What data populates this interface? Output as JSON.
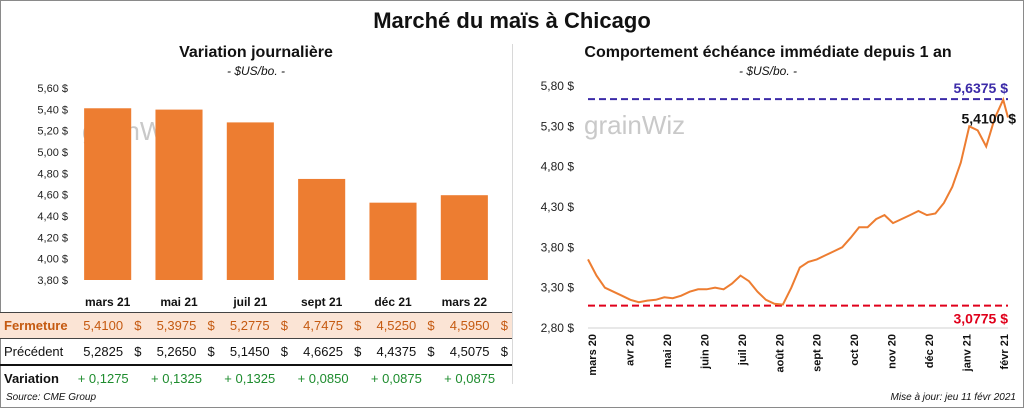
{
  "title": "Marché du maïs à Chicago",
  "left": {
    "title": "Variation  journalière",
    "unit": "- $US/bo. -",
    "watermark": "grainWiz"
  },
  "right": {
    "title": "Comportement  échéance immédiate depuis 1 an",
    "unit": "- $US/bo. -",
    "watermark": "grainWiz",
    "max_label": "5,6375 $",
    "last_label": "5,4100 $",
    "min_label": "3,0775 $"
  },
  "table": {
    "close_label": "Fermeture",
    "prev_label": "Précédent",
    "var_label": "Variation",
    "currency": "$",
    "close": [
      "5,4100",
      "5,3975",
      "5,2775",
      "4,7475",
      "4,5250",
      "4,5950"
    ],
    "prev": [
      "5,2825",
      "5,2650",
      "5,1450",
      "4,6625",
      "4,4375",
      "4,5075"
    ],
    "var": [
      "+ 0,1275",
      "+ 0,1325",
      "+ 0,1325",
      "+ 0,0850",
      "+ 0,0875",
      "+ 0,0875"
    ]
  },
  "source": "Source: CME Group",
  "updated": "Mise à jour: jeu 11 févr 2021",
  "colors": {
    "bar": "#ed7d31",
    "line": "#ed7d31",
    "max_line": "#3b2aa8",
    "min_line": "#e0001b",
    "gain": "#1e8c2e"
  },
  "chart_data": [
    {
      "type": "bar",
      "categories": [
        "mars 21",
        "mai 21",
        "juil 21",
        "sept 21",
        "déc 21",
        "mars 22"
      ],
      "values": [
        5.41,
        5.3975,
        5.2775,
        4.7475,
        4.525,
        4.595
      ],
      "ylim": [
        3.8,
        5.6
      ],
      "yticks": [
        3.8,
        4.0,
        4.2,
        4.4,
        4.6,
        4.8,
        5.0,
        5.2,
        5.4,
        5.6
      ],
      "ytick_labels": [
        "3,80 $",
        "4,00 $",
        "4,20 $",
        "4,40 $",
        "4,60 $",
        "4,80 $",
        "5,00 $",
        "5,20 $",
        "5,40 $",
        "5,60 $"
      ],
      "grid": false
    },
    {
      "type": "line",
      "x": [
        "2020-03-01",
        "2020-03-08",
        "2020-03-15",
        "2020-03-22",
        "2020-03-29",
        "2020-04-05",
        "2020-04-12",
        "2020-04-19",
        "2020-04-26",
        "2020-05-03",
        "2020-05-10",
        "2020-05-17",
        "2020-05-24",
        "2020-05-31",
        "2020-06-07",
        "2020-06-14",
        "2020-06-21",
        "2020-06-28",
        "2020-07-05",
        "2020-07-12",
        "2020-07-19",
        "2020-07-26",
        "2020-08-02",
        "2020-08-09",
        "2020-08-16",
        "2020-08-23",
        "2020-08-30",
        "2020-09-06",
        "2020-09-13",
        "2020-09-20",
        "2020-09-27",
        "2020-10-04",
        "2020-10-11",
        "2020-10-18",
        "2020-10-25",
        "2020-11-01",
        "2020-11-08",
        "2020-11-15",
        "2020-11-22",
        "2020-11-29",
        "2020-12-06",
        "2020-12-13",
        "2020-12-20",
        "2020-12-27",
        "2021-01-03",
        "2021-01-10",
        "2021-01-17",
        "2021-01-24",
        "2021-01-31",
        "2021-02-07",
        "2021-02-11"
      ],
      "y": [
        3.65,
        3.45,
        3.3,
        3.25,
        3.2,
        3.15,
        3.12,
        3.14,
        3.15,
        3.18,
        3.17,
        3.2,
        3.25,
        3.28,
        3.28,
        3.3,
        3.28,
        3.35,
        3.45,
        3.38,
        3.25,
        3.15,
        3.1,
        3.09,
        3.3,
        3.55,
        3.62,
        3.65,
        3.7,
        3.75,
        3.8,
        3.92,
        4.05,
        4.05,
        4.15,
        4.2,
        4.1,
        4.15,
        4.2,
        4.25,
        4.2,
        4.22,
        4.35,
        4.55,
        4.85,
        5.3,
        5.25,
        5.05,
        5.4,
        5.63,
        5.41
      ],
      "ylim": [
        2.8,
        5.8
      ],
      "yticks": [
        2.8,
        3.3,
        3.8,
        4.3,
        4.8,
        5.3,
        5.8
      ],
      "ytick_labels": [
        "2,80 $",
        "3,30 $",
        "3,80 $",
        "4,30 $",
        "4,80 $",
        "5,30 $",
        "5,80 $"
      ],
      "xtick_labels": [
        "mars 20",
        "avr 20",
        "mai 20",
        "juin 20",
        "juil 20",
        "août 20",
        "sept 20",
        "oct 20",
        "nov 20",
        "déc 20",
        "janv 21",
        "févr 21"
      ],
      "hlines": [
        {
          "value": 5.6375,
          "color": "#3b2aa8"
        },
        {
          "value": 3.0775,
          "color": "#e0001b"
        }
      ],
      "grid": false
    }
  ]
}
